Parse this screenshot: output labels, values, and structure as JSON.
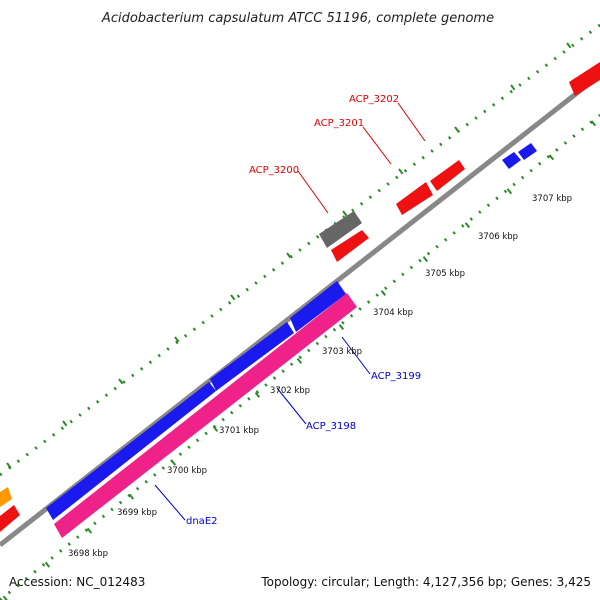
{
  "title": "Acidobacterium capsulatum ATCC 51196, complete genome",
  "footer": {
    "accession": "Accession: NC_012483",
    "stats": "Topology: circular; Length: 4,127,356 bp; Genes: 3,425"
  },
  "colors": {
    "backbone": "#888888",
    "tick": "#2a8a2a",
    "red_gene": "#ee1111",
    "blue_gene": "#1a1aee",
    "pink_gene": "#ee2288",
    "gray_gene": "#666666",
    "orange_gene": "#ff9900",
    "label_red": "#dd0000",
    "label_blue": "#0000cc"
  },
  "axis": {
    "unit": "kbp",
    "ticks": [
      {
        "label": "3698 kbp"
      },
      {
        "label": "3699 kbp"
      },
      {
        "label": "3700 kbp"
      },
      {
        "label": "3701 kbp"
      },
      {
        "label": "3702 kbp"
      },
      {
        "label": "3703 kbp"
      },
      {
        "label": "3704 kbp"
      },
      {
        "label": "3705 kbp"
      },
      {
        "label": "3706 kbp"
      },
      {
        "label": "3707 kbp"
      }
    ]
  },
  "genes": [
    {
      "name": "ACP_3200"
    },
    {
      "name": "ACP_3201"
    },
    {
      "name": "ACP_3202"
    },
    {
      "name": "ACP_3199"
    },
    {
      "name": "ACP_3198"
    },
    {
      "name": "dnaE2"
    }
  ]
}
